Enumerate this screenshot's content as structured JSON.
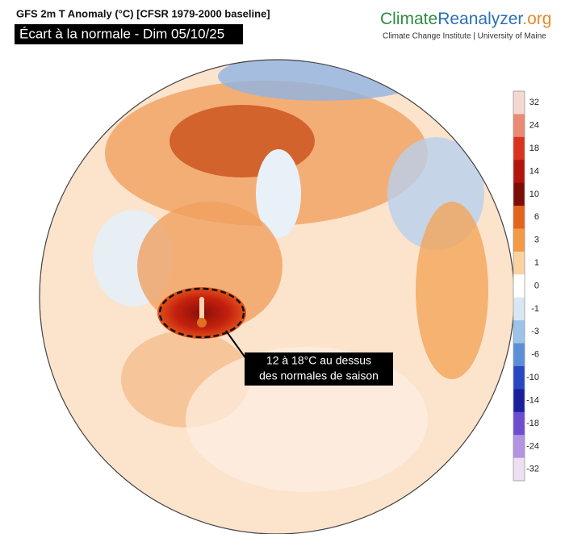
{
  "header": {
    "title": "GFS 2m T Anomaly (°C) [CFSR 1979-2000 baseline]",
    "subtitle": "Écart à la normale - Dim 05/10/25"
  },
  "logo": {
    "name_a": "Climate",
    "name_b": "Reanalyzer",
    "suffix": ".org",
    "tagline": "Climate Change Institute | University of Maine"
  },
  "colorbar": {
    "ticks": [
      32,
      24,
      18,
      14,
      10,
      6,
      3,
      1,
      0,
      -1,
      -3,
      -6,
      -10,
      -14,
      -18,
      -24,
      -32
    ],
    "colors": [
      "#f6d8d2",
      "#ea8a74",
      "#d9331f",
      "#b3140c",
      "#7d0e06",
      "#e3641c",
      "#f39a46",
      "#fbd3a2",
      "#ffffff",
      "#d9e7f5",
      "#9dc4e8",
      "#5a8fd8",
      "#2a47c2",
      "#1c1f9c",
      "#6d4dd0",
      "#b294e2",
      "#efdff2"
    ]
  },
  "annotation": {
    "lines": [
      "12 à 18°C au dessus",
      "des normales de saison"
    ]
  }
}
